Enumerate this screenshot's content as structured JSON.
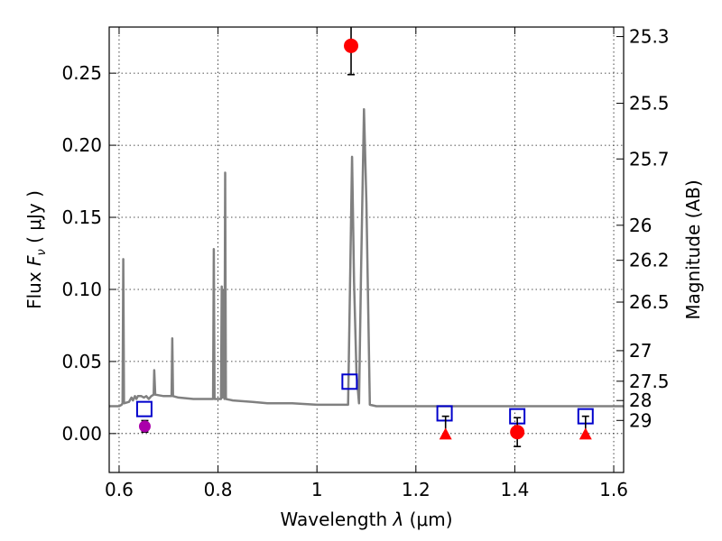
{
  "chart_data": {
    "type": "line",
    "xlabel_prefix": "Wavelength ",
    "xlabel_symbol": "λ",
    "xlabel_suffix": " (μm)",
    "ylabel_prefix": "Flux ",
    "ylabel_symbol": "F",
    "ylabel_subscript": "ν",
    "ylabel_suffix": " ( μJy )",
    "y2label": "Magnitude (AB)",
    "xlim": [
      0.58,
      1.62
    ],
    "ylim": [
      -0.027,
      0.282
    ],
    "grid": true,
    "x_ticks": [
      {
        "value": 0.6,
        "label": "0.6"
      },
      {
        "value": 0.8,
        "label": "0.8"
      },
      {
        "value": 1.0,
        "label": "1"
      },
      {
        "value": 1.2,
        "label": "1.2"
      },
      {
        "value": 1.4,
        "label": "1.4"
      },
      {
        "value": 1.6,
        "label": "1.6"
      }
    ],
    "y_ticks": [
      {
        "value": 0.0,
        "label": "0.00"
      },
      {
        "value": 0.05,
        "label": "0.05"
      },
      {
        "value": 0.1,
        "label": "0.10"
      },
      {
        "value": 0.15,
        "label": "0.15"
      },
      {
        "value": 0.2,
        "label": "0.20"
      },
      {
        "value": 0.25,
        "label": "0.25"
      }
    ],
    "right_ticks": [
      {
        "flux": 0.2754,
        "label": "25.3"
      },
      {
        "flux": 0.2291,
        "label": "25.5"
      },
      {
        "flux": 0.1905,
        "label": "25.7"
      },
      {
        "flux": 0.1445,
        "label": "26"
      },
      {
        "flux": 0.1202,
        "label": "26.2"
      },
      {
        "flux": 0.0912,
        "label": "26.5"
      },
      {
        "flux": 0.0575,
        "label": "27"
      },
      {
        "flux": 0.0363,
        "label": "27.5"
      },
      {
        "flux": 0.0229,
        "label": "28"
      },
      {
        "flux": 0.0091,
        "label": "29"
      }
    ],
    "series": [
      {
        "kind": "spectrum",
        "color": "#808080",
        "points": [
          [
            0.58,
            0.019
          ],
          [
            0.6,
            0.019
          ],
          [
            0.605,
            0.02
          ],
          [
            0.607,
            0.021
          ],
          [
            0.6085,
            0.121
          ],
          [
            0.61,
            0.021
          ],
          [
            0.62,
            0.022
          ],
          [
            0.625,
            0.025
          ],
          [
            0.628,
            0.023
          ],
          [
            0.632,
            0.026
          ],
          [
            0.635,
            0.024
          ],
          [
            0.638,
            0.026
          ],
          [
            0.645,
            0.026
          ],
          [
            0.65,
            0.025
          ],
          [
            0.655,
            0.026
          ],
          [
            0.66,
            0.024
          ],
          [
            0.665,
            0.026
          ],
          [
            0.67,
            0.027
          ],
          [
            0.671,
            0.044
          ],
          [
            0.673,
            0.027
          ],
          [
            0.69,
            0.026
          ],
          [
            0.706,
            0.026
          ],
          [
            0.7075,
            0.066
          ],
          [
            0.709,
            0.026
          ],
          [
            0.72,
            0.025
          ],
          [
            0.75,
            0.024
          ],
          [
            0.78,
            0.024
          ],
          [
            0.79,
            0.024
          ],
          [
            0.7915,
            0.128
          ],
          [
            0.793,
            0.024
          ],
          [
            0.8,
            0.024
          ],
          [
            0.806,
            0.024
          ],
          [
            0.8075,
            0.102
          ],
          [
            0.809,
            0.025
          ],
          [
            0.811,
            0.099
          ],
          [
            0.813,
            0.024
          ],
          [
            0.8145,
            0.181
          ],
          [
            0.816,
            0.024
          ],
          [
            0.83,
            0.023
          ],
          [
            0.87,
            0.022
          ],
          [
            0.9,
            0.021
          ],
          [
            0.95,
            0.021
          ],
          [
            1.0,
            0.02
          ],
          [
            1.05,
            0.02
          ],
          [
            1.063,
            0.02
          ],
          [
            1.067,
            0.105
          ],
          [
            1.071,
            0.192
          ],
          [
            1.075,
            0.105
          ],
          [
            1.08,
            0.042
          ],
          [
            1.085,
            0.021
          ],
          [
            1.089,
            0.11
          ],
          [
            1.095,
            0.225
          ],
          [
            1.1,
            0.16
          ],
          [
            1.107,
            0.02
          ],
          [
            1.12,
            0.019
          ],
          [
            1.2,
            0.019
          ],
          [
            1.3,
            0.019
          ],
          [
            1.4,
            0.019
          ],
          [
            1.5,
            0.019
          ],
          [
            1.62,
            0.019
          ]
        ]
      },
      {
        "kind": "model-squares",
        "color": "#0000cc",
        "points": [
          {
            "x": 0.651,
            "y": 0.017
          },
          {
            "x": 1.066,
            "y": 0.036
          },
          {
            "x": 1.258,
            "y": 0.014
          },
          {
            "x": 1.405,
            "y": 0.012
          },
          {
            "x": 1.543,
            "y": 0.012
          }
        ]
      },
      {
        "kind": "detections",
        "color": "#ff0000",
        "points": [
          {
            "x": 1.069,
            "y": 0.269,
            "yerr": 0.02
          },
          {
            "x": 1.405,
            "y": 0.001,
            "yerr": 0.01
          }
        ]
      },
      {
        "kind": "upper-limits",
        "color": "#ff0000",
        "points": [
          {
            "x": 1.26,
            "y": -0.001,
            "err_top": 0.013
          },
          {
            "x": 1.543,
            "y": -0.001,
            "err_top": 0.013
          }
        ]
      },
      {
        "kind": "detection-magenta",
        "color": "#aa00aa",
        "points": [
          {
            "x": 0.652,
            "y": 0.005,
            "yerr": 0.004
          }
        ]
      }
    ]
  }
}
